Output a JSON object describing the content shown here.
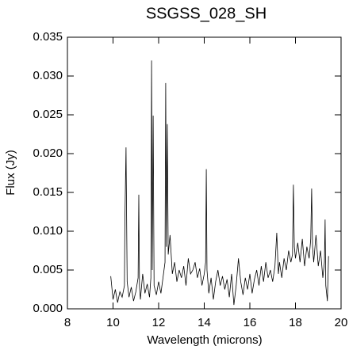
{
  "chart_data": {
    "type": "line",
    "title": "SSGSS_028_SH",
    "x_label": "Wavelength (microns)",
    "y_label": "Flux (Jy)",
    "color": "#000000",
    "x": [
      9.9,
      10.0,
      10.1,
      10.2,
      10.3,
      10.4,
      10.5,
      10.52,
      10.57,
      10.62,
      10.7,
      10.8,
      10.9,
      11.0,
      11.1,
      11.13,
      11.16,
      11.2,
      11.3,
      11.4,
      11.5,
      11.6,
      11.66,
      11.69,
      11.72,
      11.76,
      11.8,
      11.9,
      12.0,
      12.1,
      12.2,
      12.28,
      12.31,
      12.34,
      12.38,
      12.42,
      12.5,
      12.6,
      12.7,
      12.8,
      12.9,
      13.0,
      13.1,
      13.2,
      13.3,
      13.4,
      13.5,
      13.6,
      13.7,
      13.8,
      13.9,
      14.0,
      14.06,
      14.09,
      14.12,
      14.2,
      14.3,
      14.4,
      14.5,
      14.6,
      14.7,
      14.8,
      14.9,
      15.0,
      15.1,
      15.2,
      15.3,
      15.4,
      15.5,
      15.6,
      15.7,
      15.8,
      15.9,
      16.0,
      16.1,
      16.2,
      16.3,
      16.4,
      16.5,
      16.6,
      16.7,
      16.8,
      16.9,
      17.0,
      17.1,
      17.18,
      17.25,
      17.3,
      17.4,
      17.5,
      17.6,
      17.7,
      17.8,
      17.87,
      17.91,
      17.95,
      18.0,
      18.1,
      18.2,
      18.3,
      18.4,
      18.5,
      18.6,
      18.67,
      18.71,
      18.75,
      18.8,
      18.9,
      19.0,
      19.1,
      19.2,
      19.27,
      19.3,
      19.33,
      19.4,
      19.45
    ],
    "values": [
      0.0042,
      0.0012,
      0.0025,
      0.0008,
      0.0022,
      0.0015,
      0.003,
      0.0113,
      0.0208,
      0.0035,
      0.0015,
      0.0028,
      0.001,
      0.0022,
      0.004,
      0.0147,
      0.003,
      0.0012,
      0.0045,
      0.002,
      0.0032,
      0.0015,
      0.004,
      0.032,
      0.005,
      0.0249,
      0.003,
      0.0018,
      0.0035,
      0.002,
      0.0042,
      0.006,
      0.0291,
      0.008,
      0.0238,
      0.007,
      0.0095,
      0.0045,
      0.006,
      0.0035,
      0.005,
      0.004,
      0.0055,
      0.003,
      0.0065,
      0.0045,
      0.005,
      0.006,
      0.004,
      0.0052,
      0.003,
      0.0045,
      0.006,
      0.018,
      0.005,
      0.002,
      0.004,
      0.0012,
      0.0035,
      0.005,
      0.003,
      0.0042,
      0.0025,
      0.0038,
      0.0015,
      0.0045,
      0.0005,
      0.003,
      0.0065,
      0.0035,
      0.0018,
      0.004,
      0.0025,
      0.0045,
      0.002,
      0.0038,
      0.005,
      0.003,
      0.0055,
      0.0035,
      0.006,
      0.004,
      0.005,
      0.0035,
      0.0055,
      0.0098,
      0.0045,
      0.006,
      0.004,
      0.0065,
      0.005,
      0.0075,
      0.006,
      0.007,
      0.016,
      0.008,
      0.0065,
      0.0085,
      0.006,
      0.009,
      0.0055,
      0.008,
      0.0065,
      0.009,
      0.0155,
      0.008,
      0.006,
      0.0095,
      0.0055,
      0.0075,
      0.004,
      0.006,
      0.0115,
      0.003,
      0.001,
      0.0068
    ],
    "xlim": [
      8,
      20
    ],
    "xticks": [
      8,
      10,
      12,
      14,
      16,
      18,
      20
    ],
    "ylim": [
      0,
      0.035
    ],
    "yticks": [
      {
        "value": 0,
        "label": "0.000"
      },
      {
        "value": 0.005,
        "label": "0.005"
      },
      {
        "value": 0.01,
        "label": "0.010"
      },
      {
        "value": 0.015,
        "label": "0.015"
      },
      {
        "value": 0.02,
        "label": "0.020"
      },
      {
        "value": 0.025,
        "label": "0.025"
      },
      {
        "value": 0.03,
        "label": "0.030"
      },
      {
        "value": 0.035,
        "label": "0.035"
      }
    ]
  }
}
